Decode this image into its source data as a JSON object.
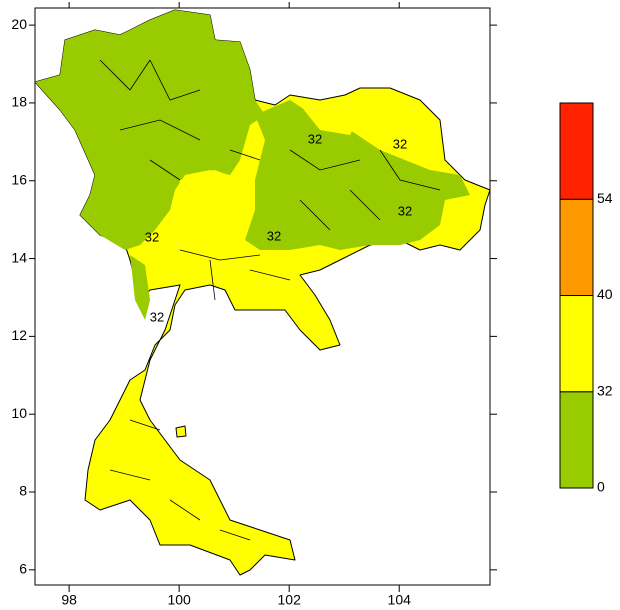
{
  "map": {
    "xlim": [
      97.38,
      105.65
    ],
    "ylim": [
      5.61,
      20.44
    ],
    "xticks": [
      98,
      100,
      102,
      104
    ],
    "yticks": [
      6,
      8,
      10,
      12,
      14,
      16,
      18,
      20
    ],
    "contour_labels": [
      "32",
      "32",
      "32",
      "32",
      "32",
      "32"
    ],
    "colorbar": {
      "levels": [
        0,
        32,
        40,
        54
      ],
      "colors": [
        "#99cc00",
        "#ffff00",
        "#ff9900",
        "#ff2200"
      ]
    }
  }
}
